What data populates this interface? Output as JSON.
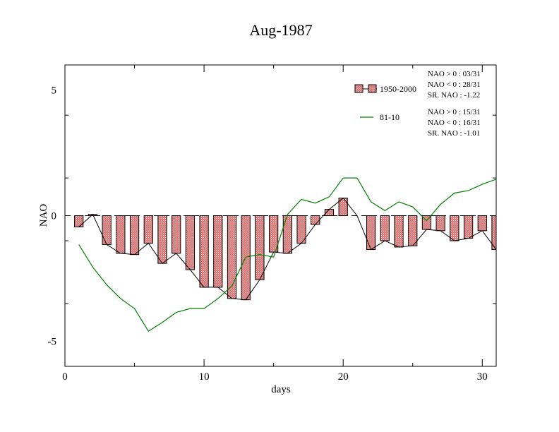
{
  "chart_data": {
    "type": "bar",
    "title": "Aug-1987",
    "xlabel": "days",
    "ylabel": "NAO",
    "xlim": [
      0,
      31
    ],
    "ylim": [
      -6,
      6
    ],
    "x_ticks": [
      0,
      10,
      20,
      30
    ],
    "y_ticks": [
      -5,
      0,
      5
    ],
    "x_tick_labels": [
      "0",
      "10",
      "20",
      "30"
    ],
    "y_tick_labels": [
      "-5",
      "0",
      "5"
    ],
    "legend_position": "top-right",
    "days": [
      1,
      2,
      3,
      4,
      5,
      6,
      7,
      8,
      9,
      10,
      11,
      12,
      13,
      14,
      15,
      16,
      17,
      18,
      19,
      20,
      21,
      22,
      23,
      24,
      25,
      26,
      27,
      28,
      29,
      30,
      31
    ],
    "series": [
      {
        "name": "1950-2000",
        "kind": "bar",
        "color": "#e07070",
        "values": [
          -0.45,
          0.05,
          -1.15,
          -1.5,
          -1.55,
          -1.1,
          -1.9,
          -1.5,
          -2.15,
          -2.85,
          -2.85,
          -3.3,
          -3.35,
          -2.55,
          -1.45,
          -1.5,
          -1.1,
          -0.35,
          0.25,
          0.7,
          0.0,
          -1.35,
          -1.0,
          -1.25,
          -1.2,
          -0.55,
          -0.6,
          -1.0,
          -0.9,
          -0.6,
          -1.35
        ],
        "stats": [
          "NAO > 0 : 03/31",
          "NAO < 0 : 28/31",
          "SR. NAO : -1.22"
        ]
      },
      {
        "name": "81-10",
        "kind": "line",
        "color": "#008000",
        "values": [
          -1.15,
          -2.05,
          -2.75,
          -3.3,
          -3.7,
          -4.6,
          -4.25,
          -3.85,
          -3.7,
          -3.7,
          -3.3,
          -2.8,
          -1.65,
          -1.55,
          -1.65,
          0.05,
          0.65,
          0.5,
          0.75,
          1.5,
          1.5,
          0.55,
          0.2,
          0.55,
          0.35,
          -0.2,
          0.45,
          0.9,
          1.0,
          1.25,
          1.45
        ],
        "stats": [
          "NAO > 0 : 15/31",
          "NAO < 0 : 16/31",
          "SR. NAO : -1.01"
        ]
      }
    ]
  }
}
